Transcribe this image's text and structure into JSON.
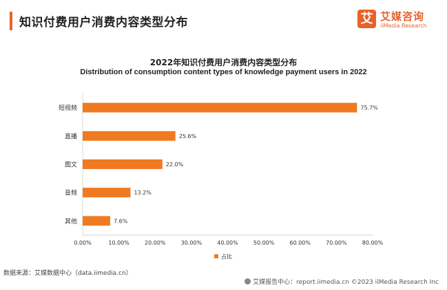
{
  "page_title": "知识付费用户消费内容类型分布",
  "brand": {
    "logo_char": "艾",
    "name_cn": "艾媒咨询",
    "name_en": "iiMedia Research",
    "color": "#e8622a"
  },
  "chart_data": {
    "type": "bar",
    "orientation": "horizontal",
    "title": "2022年知识付费用户消费内容类型分布",
    "subtitle": "Distribution of consumption content types of knowledge payment users in 2022",
    "categories": [
      "短视频",
      "直播",
      "图文",
      "音频",
      "其他"
    ],
    "values": [
      75.7,
      25.6,
      22.0,
      13.2,
      7.6
    ],
    "value_labels": [
      "75.7%",
      "25.6%",
      "22.0%",
      "13.2%",
      "7.6%"
    ],
    "series_name": "占比",
    "xlim": [
      0,
      80
    ],
    "x_ticks": [
      "0.00%",
      "10.00%",
      "20.00%",
      "30.00%",
      "40.00%",
      "50.00%",
      "60.00%",
      "70.00%",
      "80.00%"
    ],
    "bar_color": "#f07a22",
    "grid": false,
    "legend": "bottom-center"
  },
  "source_text": "数据来源：艾媒数据中心（data.iimedia.cn）",
  "footer_text": "艾媒报告中心：report.iimedia.cn ©2023  iiMedia Research Inc"
}
